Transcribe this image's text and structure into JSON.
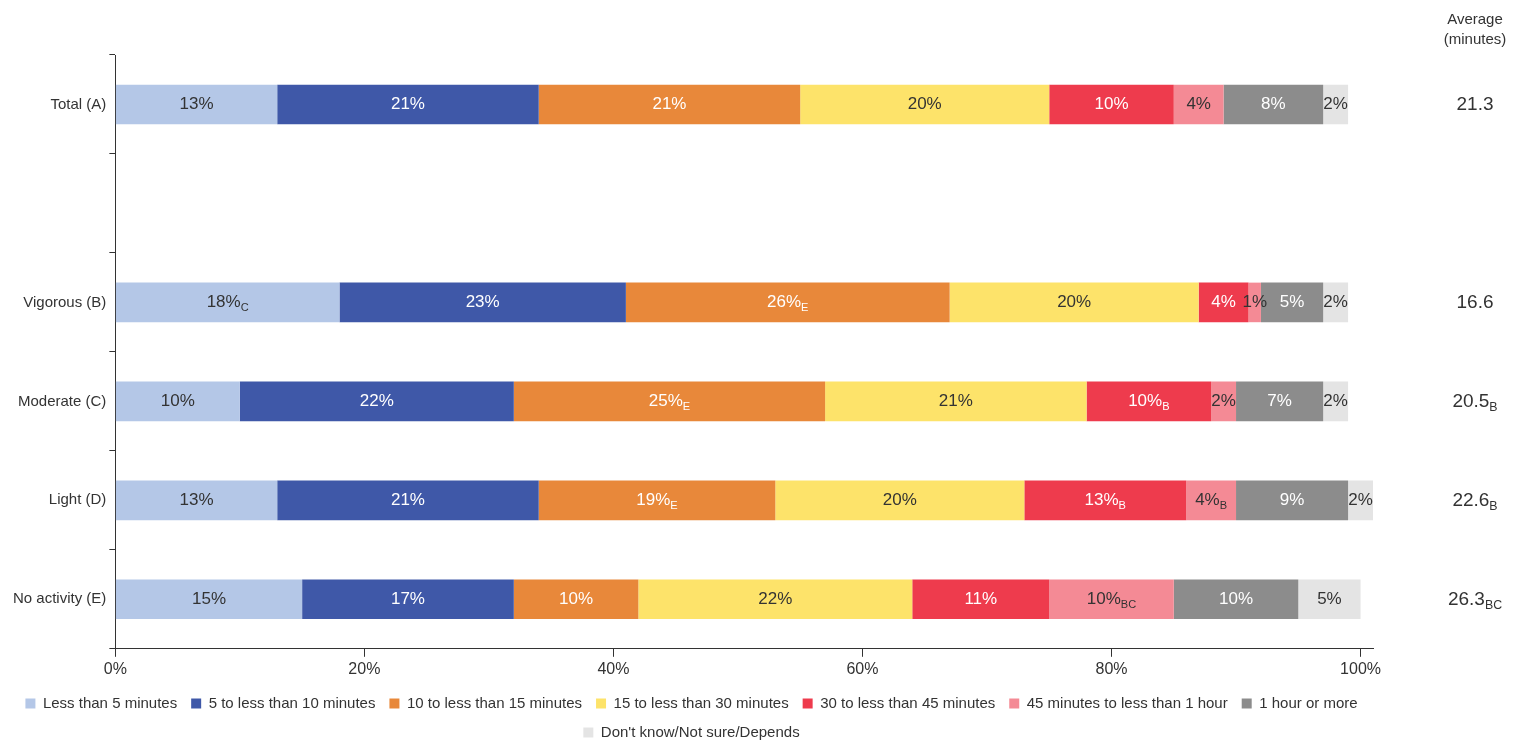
{
  "chart_data": {
    "type": "bar",
    "orientation": "horizontal",
    "stacked": true,
    "categories": [
      "Total (A)",
      null,
      "Vigorous (B)",
      "Moderate (C)",
      "Light (D)",
      "No activity (E)"
    ],
    "series": [
      {
        "name": "Less than 5 minutes",
        "color": "#b4c7e7",
        "values": [
          13,
          null,
          18,
          10,
          13,
          15
        ],
        "value_labels": [
          "13%",
          null,
          "18%$_{C}$",
          "10%",
          "13%",
          "15%"
        ]
      },
      {
        "name": "5 to less than 10 minutes",
        "color": "#3f58a8",
        "values": [
          21,
          null,
          23,
          22,
          21,
          17
        ],
        "value_labels": [
          "21%",
          null,
          "23%",
          "22%",
          "21%",
          "17%"
        ]
      },
      {
        "name": "10 to less than 15 minutes",
        "color": "#e8883a",
        "values": [
          21,
          null,
          26,
          25,
          19,
          10
        ],
        "value_labels": [
          "21%",
          null,
          "26%$_{E}$",
          "25%$_{E}$",
          "19%$_{E}$",
          "10%"
        ]
      },
      {
        "name": "15 to less than 30 minutes",
        "color": "#fde36a",
        "values": [
          20,
          null,
          20,
          21,
          20,
          22
        ],
        "value_labels": [
          "20%",
          null,
          "20%",
          "21%",
          "20%",
          "22%"
        ]
      },
      {
        "name": "30 to less than 45 minutes",
        "color": "#ee3b4d",
        "values": [
          10,
          null,
          4,
          10,
          13,
          11
        ],
        "value_labels": [
          "10%",
          null,
          "4%",
          "10%$_{B}$",
          "13%$_{B}$",
          "11%"
        ]
      },
      {
        "name": "45 minutes to less than 1 hour",
        "color": "#f48a95",
        "values": [
          4,
          null,
          1,
          2,
          4,
          10
        ],
        "value_labels": [
          "4%",
          null,
          "1%",
          "2%",
          "4%$_{B}$",
          "10%$_{BC}$"
        ]
      },
      {
        "name": "1 hour or more",
        "color": "#8c8c8c",
        "values": [
          8,
          null,
          5,
          7,
          9,
          10
        ],
        "value_labels": [
          "8%",
          null,
          "5%",
          "7%",
          "9%",
          "10%"
        ]
      },
      {
        "name": "Don't know/Not sure/Depends",
        "color": "#e4e4e4",
        "values": [
          2,
          null,
          2,
          2,
          2,
          5
        ],
        "value_labels": [
          "2%",
          null,
          "2%",
          "2%",
          "2%",
          "5%"
        ]
      }
    ],
    "xlim": [
      0,
      101
    ],
    "xticks": [
      {
        "value": 0,
        "label": "0%"
      },
      {
        "value": 20,
        "label": "20%"
      },
      {
        "value": 40,
        "label": "40%"
      },
      {
        "value": 60,
        "label": "60%"
      },
      {
        "value": 80,
        "label": "80%"
      },
      {
        "value": 100,
        "label": "100%"
      }
    ],
    "grid": false,
    "legend": "bottom",
    "annotations": [
      "Average (minutes)",
      "21.3",
      "16.6",
      "20.5$_{B}$",
      "22.6$_{B}$",
      "26.3$_{BC}$"
    ]
  }
}
